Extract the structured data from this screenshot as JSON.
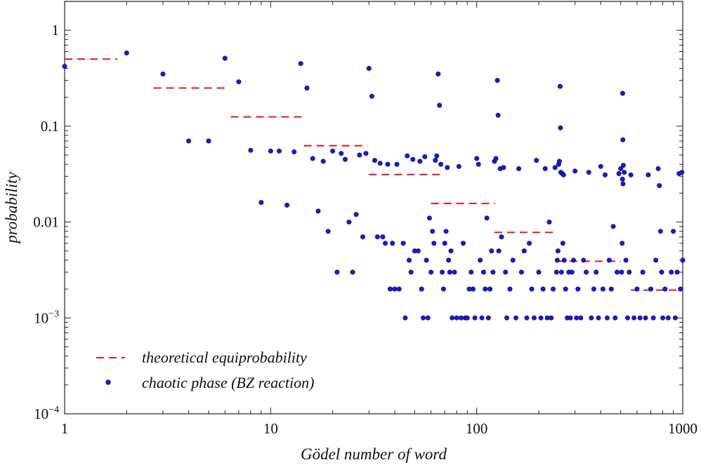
{
  "chart_data": {
    "type": "scatter",
    "x_scale": "log",
    "y_scale": "log",
    "xlim": [
      1,
      1000
    ],
    "ylim": [
      0.0001,
      2
    ],
    "xlabel": "Gödel number of word",
    "ylabel": "probability",
    "x_ticks": [
      {
        "value": 1,
        "label": "1"
      },
      {
        "value": 10,
        "label": "10"
      },
      {
        "value": 100,
        "label": "100"
      },
      {
        "value": 1000,
        "label": "1000"
      }
    ],
    "y_ticks": [
      {
        "value": 1,
        "label": "1",
        "sup": ""
      },
      {
        "value": 0.1,
        "label": "0.1",
        "sup": ""
      },
      {
        "value": 0.01,
        "label": "0.01",
        "sup": ""
      },
      {
        "value": 0.001,
        "label": "10",
        "sup": "−3"
      },
      {
        "value": 0.0001,
        "label": "10",
        "sup": "−4"
      }
    ],
    "grid": false,
    "legend_position": "bottom-left",
    "colors": {
      "theory": "#e8141c",
      "data": "#1a1ad0",
      "data_edge": "#0a0a6e"
    },
    "series": [
      {
        "name": "theoretical equiprobability",
        "kind": "dashed-steps",
        "segments": [
          {
            "x0": 1,
            "x1": 1.8,
            "y": 0.5
          },
          {
            "x0": 2.7,
            "x1": 6.3,
            "y": 0.25
          },
          {
            "x0": 6.4,
            "x1": 14.5,
            "y": 0.125
          },
          {
            "x0": 14.5,
            "x1": 29.5,
            "y": 0.0625
          },
          {
            "x0": 30,
            "x1": 67,
            "y": 0.03125
          },
          {
            "x0": 60,
            "x1": 123,
            "y": 0.015625
          },
          {
            "x0": 122,
            "x1": 245,
            "y": 0.0078
          },
          {
            "x0": 245,
            "x1": 500,
            "y": 0.0039
          },
          {
            "x0": 560,
            "x1": 1000,
            "y": 0.00195
          }
        ]
      },
      {
        "name": "chaotic phase (BZ reaction)",
        "kind": "points",
        "points": [
          [
            1,
            0.42
          ],
          [
            2,
            0.58
          ],
          [
            3,
            0.35
          ],
          [
            4,
            0.07
          ],
          [
            5,
            0.07
          ],
          [
            6,
            0.51
          ],
          [
            7,
            0.29
          ],
          [
            8,
            0.056
          ],
          [
            9,
            0.016
          ],
          [
            10,
            0.055
          ],
          [
            11,
            0.055
          ],
          [
            12,
            0.015
          ],
          [
            13,
            0.054
          ],
          [
            14,
            0.45
          ],
          [
            15,
            0.25
          ],
          [
            16,
            0.046
          ],
          [
            17,
            0.013
          ],
          [
            18,
            0.043
          ],
          [
            19,
            0.008
          ],
          [
            20,
            0.055
          ],
          [
            21,
            0.003
          ],
          [
            22,
            0.052
          ],
          [
            23,
            0.045
          ],
          [
            24,
            0.01
          ],
          [
            25,
            0.003
          ],
          [
            26,
            0.012
          ],
          [
            27,
            0.05
          ],
          [
            28,
            0.007
          ],
          [
            29,
            0.052
          ],
          [
            30,
            0.4
          ],
          [
            31,
            0.205
          ],
          [
            32,
            0.044
          ],
          [
            33,
            0.007
          ],
          [
            34,
            0.041
          ],
          [
            35,
            0.007
          ],
          [
            36,
            0.006
          ],
          [
            37,
            0.04
          ],
          [
            38,
            0.002
          ],
          [
            39,
            0.006
          ],
          [
            40,
            0.002
          ],
          [
            41,
            0.04
          ],
          [
            42,
            0.002
          ],
          [
            44,
            0.006
          ],
          [
            45,
            0.001
          ],
          [
            46,
            0.049
          ],
          [
            47,
            0.004
          ],
          [
            48,
            0.003
          ],
          [
            49,
            0.045
          ],
          [
            50,
            0.005
          ],
          [
            52,
            0.005
          ],
          [
            53,
            0.043
          ],
          [
            54,
            0.002
          ],
          [
            55,
            0.001
          ],
          [
            56,
            0.048
          ],
          [
            57,
            0.004
          ],
          [
            58,
            0.001
          ],
          [
            59,
            0.011
          ],
          [
            60,
            0.003
          ],
          [
            61,
            0.008
          ],
          [
            62,
            0.006
          ],
          [
            63,
            0.044
          ],
          [
            64,
            0.049
          ],
          [
            65,
            0.35
          ],
          [
            66,
            0.165
          ],
          [
            67,
            0.04
          ],
          [
            68,
            0.003
          ],
          [
            69,
            0.002
          ],
          [
            70,
            0.006
          ],
          [
            71,
            0.008
          ],
          [
            72,
            0.037
          ],
          [
            73,
            0.004
          ],
          [
            74,
            0.003
          ],
          [
            75,
            0.005
          ],
          [
            76,
            0.001
          ],
          [
            78,
            0.003
          ],
          [
            80,
            0.001
          ],
          [
            82,
            0.038
          ],
          [
            84,
            0.001
          ],
          [
            86,
            0.006
          ],
          [
            88,
            0.001
          ],
          [
            90,
            0.001
          ],
          [
            92,
            0.002
          ],
          [
            94,
            0.003
          ],
          [
            96,
            0.002
          ],
          [
            98,
            0.001
          ],
          [
            100,
            0.046
          ],
          [
            102,
            0.04
          ],
          [
            104,
            0.004
          ],
          [
            106,
            0.001
          ],
          [
            108,
            0.003
          ],
          [
            110,
            0.002
          ],
          [
            112,
            0.011
          ],
          [
            114,
            0.001
          ],
          [
            116,
            0.002
          ],
          [
            118,
            0.005
          ],
          [
            120,
            0.003
          ],
          [
            122,
            0.043
          ],
          [
            124,
            0.046
          ],
          [
            126,
            0.3
          ],
          [
            127,
            0.13
          ],
          [
            128,
            0.005
          ],
          [
            130,
            0.036
          ],
          [
            132,
            0.007
          ],
          [
            135,
            0.037
          ],
          [
            138,
            0.003
          ],
          [
            140,
            0.001
          ],
          [
            145,
            0.002
          ],
          [
            150,
            0.004
          ],
          [
            155,
            0.001
          ],
          [
            160,
            0.036
          ],
          [
            165,
            0.003
          ],
          [
            170,
            0.005
          ],
          [
            175,
            0.001
          ],
          [
            180,
            0.006
          ],
          [
            185,
            0.002
          ],
          [
            190,
            0.001
          ],
          [
            195,
            0.044
          ],
          [
            200,
            0.003
          ],
          [
            205,
            0.001
          ],
          [
            210,
            0.002
          ],
          [
            215,
            0.036
          ],
          [
            220,
            0.001
          ],
          [
            225,
            0.01
          ],
          [
            230,
            0.001
          ],
          [
            235,
            0.002
          ],
          [
            240,
            0.037
          ],
          [
            244,
            0.003
          ],
          [
            246,
            0.004
          ],
          [
            248,
            0.005
          ],
          [
            250,
            0.04
          ],
          [
            252,
            0.043
          ],
          [
            254,
            0.26
          ],
          [
            255,
            0.096
          ],
          [
            256,
            0.033
          ],
          [
            258,
            0.003
          ],
          [
            260,
            0.032
          ],
          [
            262,
            0.006
          ],
          [
            264,
            0.031
          ],
          [
            266,
            0.004
          ],
          [
            270,
            0.002
          ],
          [
            275,
            0.001
          ],
          [
            280,
            0.003
          ],
          [
            285,
            0.001
          ],
          [
            290,
            0.003
          ],
          [
            295,
            0.004
          ],
          [
            300,
            0.034
          ],
          [
            305,
            0.001
          ],
          [
            310,
            0.002
          ],
          [
            320,
            0.001
          ],
          [
            330,
            0.004
          ],
          [
            340,
            0.003
          ],
          [
            350,
            0.033
          ],
          [
            360,
            0.001
          ],
          [
            370,
            0.002
          ],
          [
            380,
            0.003
          ],
          [
            390,
            0.001
          ],
          [
            400,
            0.038
          ],
          [
            410,
            0.002
          ],
          [
            420,
            0.031
          ],
          [
            430,
            0.001
          ],
          [
            440,
            0.004
          ],
          [
            450,
            0.002
          ],
          [
            460,
            0.009
          ],
          [
            470,
            0.001
          ],
          [
            480,
            0.003
          ],
          [
            490,
            0.032
          ],
          [
            500,
            0.036
          ],
          [
            505,
            0.003
          ],
          [
            508,
            0.006
          ],
          [
            510,
            0.028
          ],
          [
            511,
            0.22
          ],
          [
            512,
            0.072
          ],
          [
            513,
            0.025
          ],
          [
            515,
            0.039
          ],
          [
            520,
            0.033
          ],
          [
            530,
            0.004
          ],
          [
            540,
            0.001
          ],
          [
            550,
            0.003
          ],
          [
            560,
            0.031
          ],
          [
            580,
            0.001
          ],
          [
            600,
            0.002
          ],
          [
            620,
            0.001
          ],
          [
            640,
            0.003
          ],
          [
            660,
            0.001
          ],
          [
            680,
            0.031
          ],
          [
            700,
            0.002
          ],
          [
            720,
            0.001
          ],
          [
            740,
            0.004
          ],
          [
            760,
            0.036
          ],
          [
            770,
            0.024
          ],
          [
            780,
            0.008
          ],
          [
            790,
            0.003
          ],
          [
            800,
            0.001
          ],
          [
            820,
            0.002
          ],
          [
            850,
            0.001
          ],
          [
            880,
            0.003
          ],
          [
            900,
            0.008
          ],
          [
            920,
            0.001
          ],
          [
            940,
            0.003
          ],
          [
            960,
            0.032
          ],
          [
            975,
            0.002
          ],
          [
            990,
            0.033
          ],
          [
            1000,
            0.004
          ]
        ]
      }
    ]
  }
}
